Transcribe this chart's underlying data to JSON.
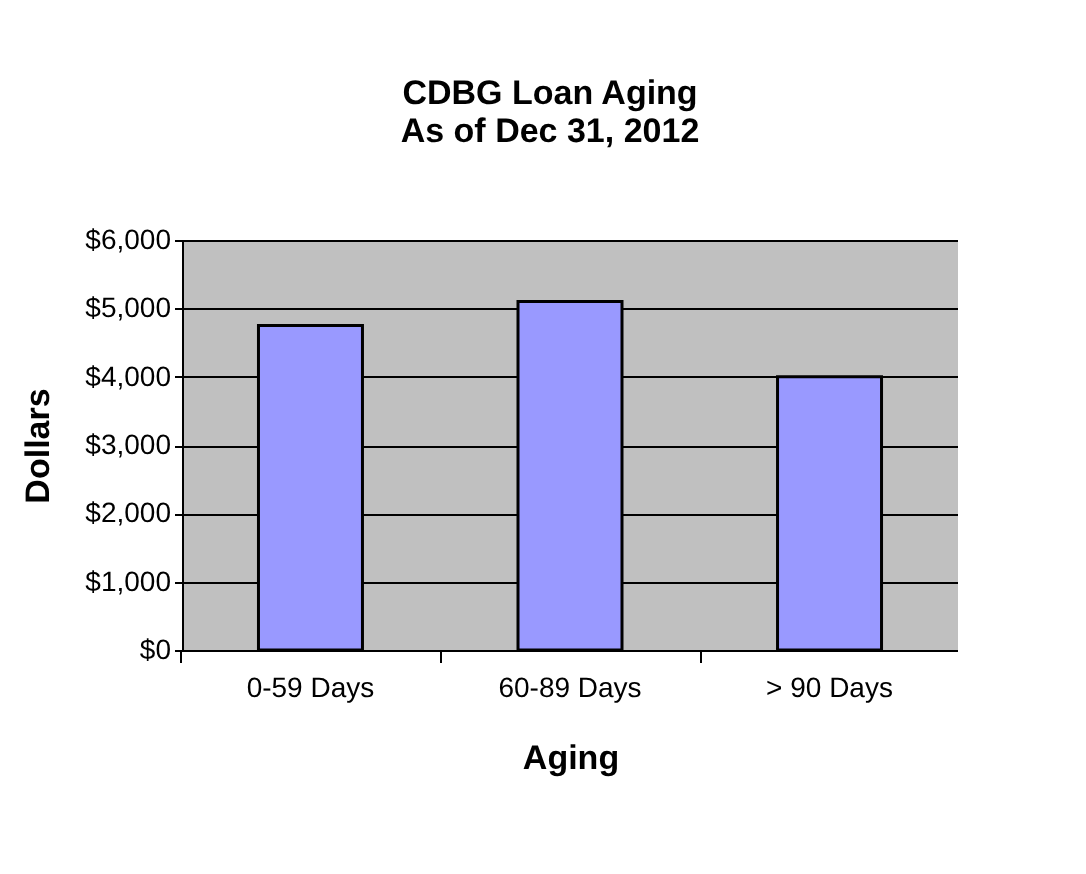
{
  "chart_data": {
    "type": "bar",
    "title": "CDBG Loan Aging\nAs of Dec 31, 2012",
    "xlabel": "Aging",
    "ylabel": "Dollars",
    "categories": [
      "0-59 Days",
      "60-89 Days",
      "> 90 Days"
    ],
    "values": [
      4750,
      5100,
      4000
    ],
    "color": "#9999ff",
    "ylim": [
      0,
      6000
    ],
    "yticks": [
      {
        "value": 0,
        "label": "$0"
      },
      {
        "value": 1000,
        "label": "$1,000"
      },
      {
        "value": 2000,
        "label": "$2,000"
      },
      {
        "value": 3000,
        "label": "$3,000"
      },
      {
        "value": 4000,
        "label": "$4,000"
      },
      {
        "value": 5000,
        "label": "$5,000"
      },
      {
        "value": 6000,
        "label": "$6,000"
      }
    ],
    "grid": "y"
  }
}
